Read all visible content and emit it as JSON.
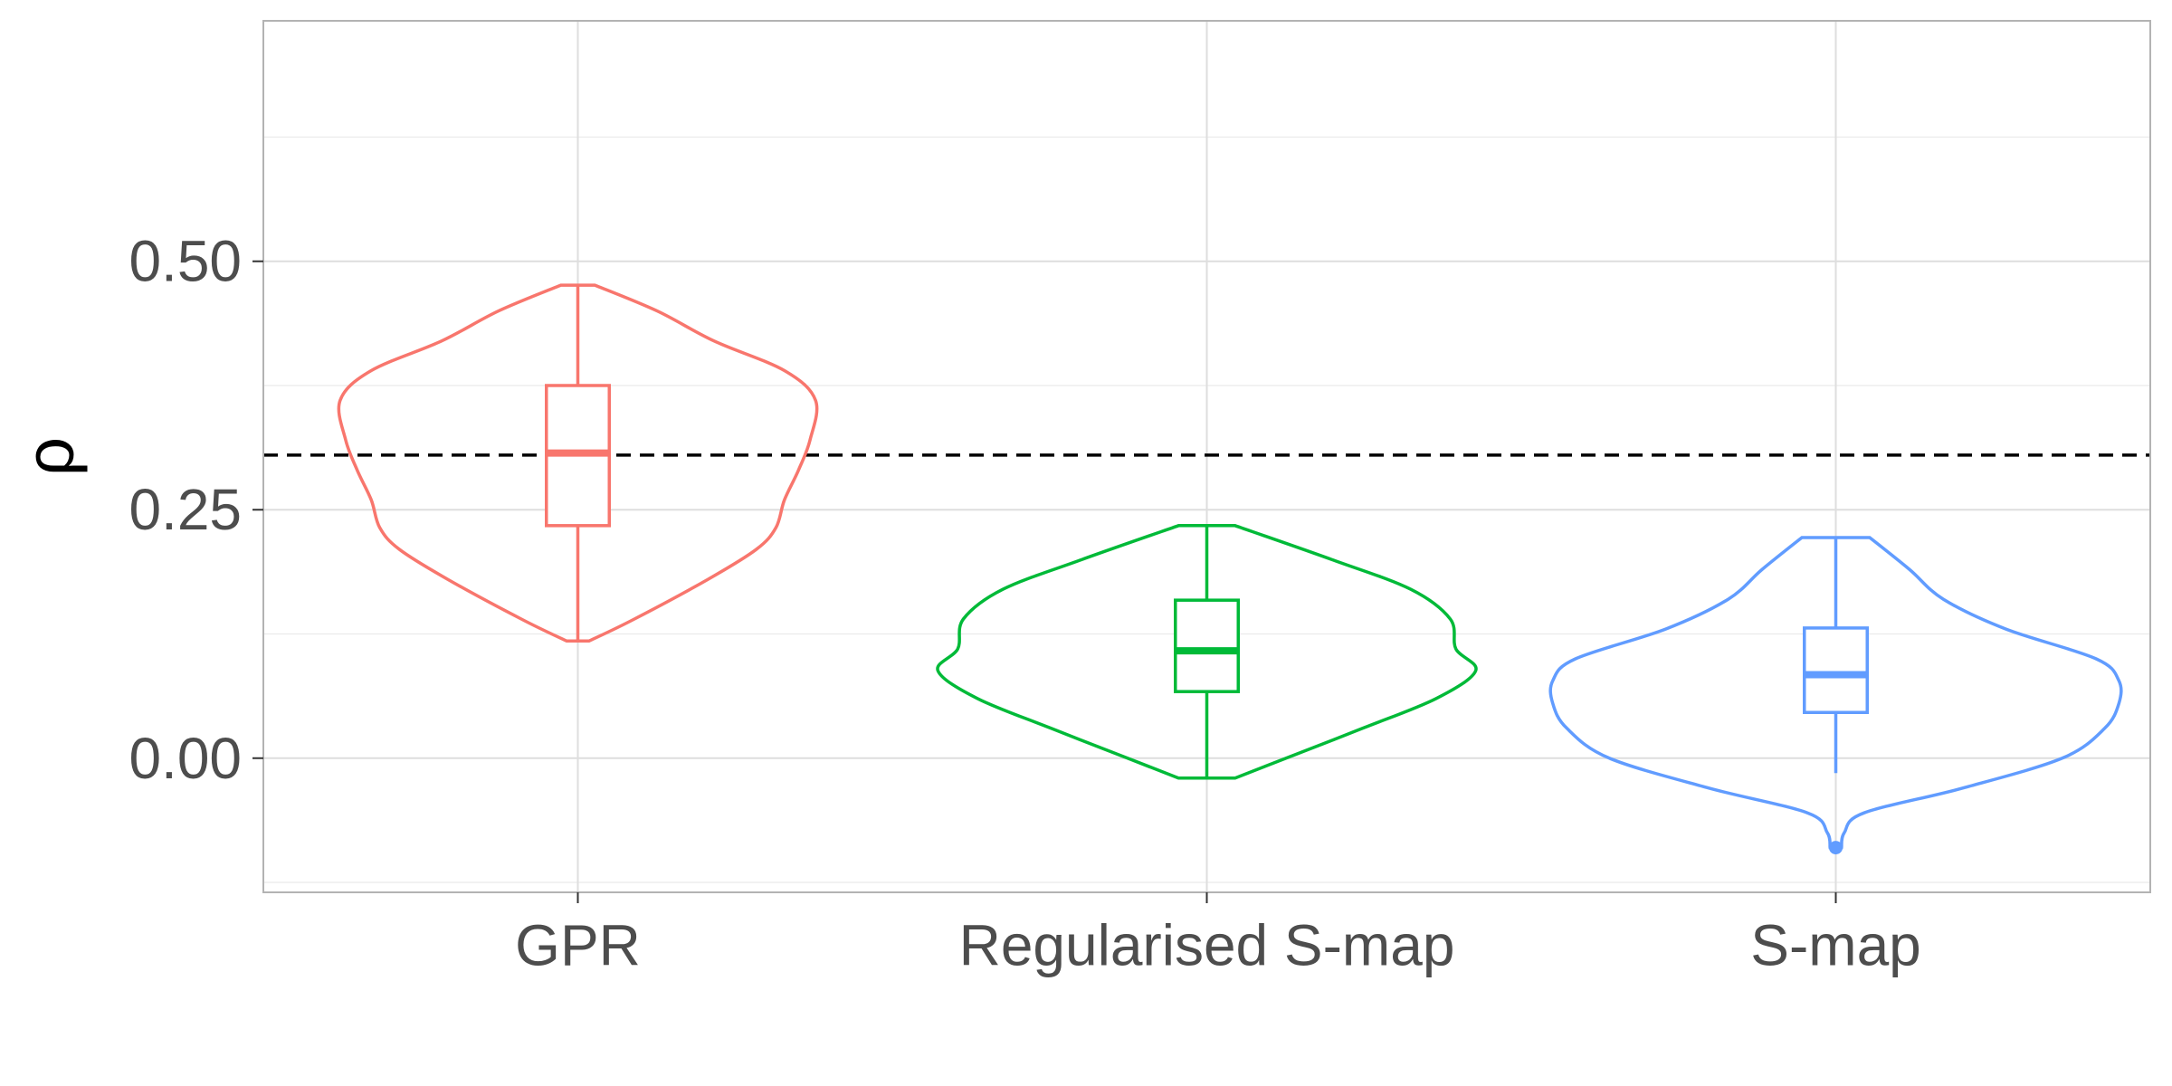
{
  "chart_data": {
    "type": "violin",
    "xlabel": "",
    "ylabel": "ρ",
    "ylim": [
      -0.135,
      0.742
    ],
    "y_ticks": [
      0.0,
      0.25,
      0.5
    ],
    "y_tick_labels": [
      "0.00",
      "0.25",
      "0.50"
    ],
    "y_minor_ticks": [
      -0.125,
      0.125,
      0.375,
      0.625
    ],
    "categories": [
      "GPR",
      "Regularised S-map",
      "S-map"
    ],
    "reference_line": {
      "y": 0.305,
      "style": "dashed",
      "color": "#000000"
    },
    "grid": true,
    "legend": "none",
    "series": [
      {
        "category": "GPR",
        "color": "#F8766D",
        "box": {
          "lower_whisker": 0.118,
          "q1": 0.234,
          "median": 0.307,
          "q3": 0.375,
          "upper_whisker": 0.476
        },
        "outliers": [],
        "density": [
          [
            0.118,
            0.04
          ],
          [
            0.14,
            0.2
          ],
          [
            0.18,
            0.46
          ],
          [
            0.21,
            0.63
          ],
          [
            0.232,
            0.7
          ],
          [
            0.26,
            0.73
          ],
          [
            0.29,
            0.78
          ],
          [
            0.32,
            0.82
          ],
          [
            0.36,
            0.84
          ],
          [
            0.39,
            0.73
          ],
          [
            0.42,
            0.48
          ],
          [
            0.45,
            0.28
          ],
          [
            0.476,
            0.06
          ]
        ]
      },
      {
        "category": "Regularised S-map",
        "color": "#00BA38",
        "box": {
          "lower_whisker": -0.02,
          "q1": 0.067,
          "median": 0.108,
          "q3": 0.159,
          "upper_whisker": 0.234
        },
        "outliers": [],
        "density": [
          [
            -0.02,
            0.1
          ],
          [
            0.0,
            0.28
          ],
          [
            0.03,
            0.55
          ],
          [
            0.06,
            0.81
          ],
          [
            0.088,
            0.95
          ],
          [
            0.11,
            0.88
          ],
          [
            0.14,
            0.86
          ],
          [
            0.17,
            0.72
          ],
          [
            0.2,
            0.44
          ],
          [
            0.234,
            0.1
          ]
        ]
      },
      {
        "category": "S-map",
        "color": "#619CFF",
        "box": {
          "lower_whisker": -0.015,
          "q1": 0.046,
          "median": 0.084,
          "q3": 0.131,
          "upper_whisker": 0.222
        },
        "outliers": [
          -0.09
        ],
        "density": [
          [
            -0.09,
            0.02
          ],
          [
            -0.075,
            0.03
          ],
          [
            -0.055,
            0.1
          ],
          [
            -0.03,
            0.45
          ],
          [
            0.0,
            0.8
          ],
          [
            0.03,
            0.95
          ],
          [
            0.055,
            1.0
          ],
          [
            0.078,
            1.0
          ],
          [
            0.1,
            0.92
          ],
          [
            0.13,
            0.6
          ],
          [
            0.16,
            0.38
          ],
          [
            0.19,
            0.26
          ],
          [
            0.222,
            0.12
          ]
        ]
      }
    ]
  }
}
